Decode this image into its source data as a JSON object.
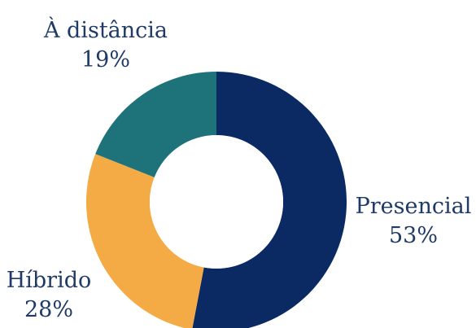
{
  "chart_data": {
    "type": "pie",
    "donut": true,
    "slices": [
      {
        "label": "Presencial",
        "value": 53,
        "display": "53%",
        "color": "#0b2a63"
      },
      {
        "label": "Híbrido",
        "value": 28,
        "display": "28%",
        "color": "#f4ab45"
      },
      {
        "label": "À distância",
        "value": 19,
        "display": "19%",
        "color": "#1e737b"
      }
    ],
    "start_angle": "12 o'clock",
    "direction": "clockwise",
    "label_color": "#1f3a66",
    "legend": "none"
  }
}
